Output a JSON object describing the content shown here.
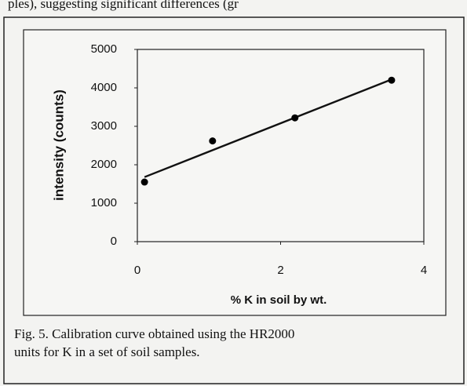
{
  "header_text": "ples), suggesting significant differences (gr",
  "chart_data": {
    "type": "scatter",
    "x": [
      0.1,
      1.05,
      2.2,
      3.55
    ],
    "values": [
      1550,
      2620,
      3220,
      4200
    ],
    "color": "#000000",
    "trendline": {
      "x": [
        0.1,
        3.55
      ],
      "values": [
        1680,
        4220
      ]
    },
    "xlabel": "% K in soil by wt.",
    "ylabel": "intensity (counts)",
    "xlim": [
      0,
      4
    ],
    "xticks": [
      0,
      2,
      4
    ],
    "ylim": [
      0,
      5000
    ],
    "yticks": [
      0,
      1000,
      2000,
      3000,
      4000,
      5000
    ],
    "grid": false
  },
  "caption": [
    "Fig. 5.  Calibration curve obtained using the HR2000",
    "units for K in a set of soil samples."
  ]
}
